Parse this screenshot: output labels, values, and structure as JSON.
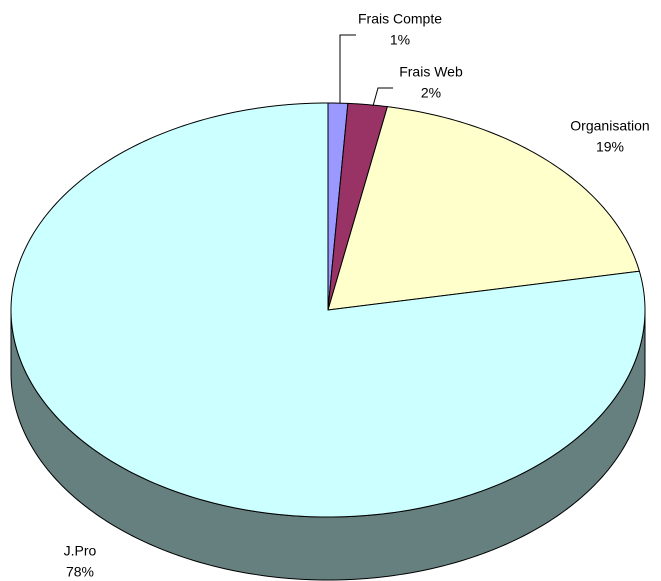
{
  "chart_data": {
    "type": "pie",
    "categories": [
      "Frais Compte",
      "Frais Web",
      "Organisation",
      "J.Pro"
    ],
    "values": [
      1,
      2,
      19,
      78
    ],
    "value_labels": [
      "1%",
      "2%",
      "19%",
      "78%"
    ],
    "colors": [
      "#9999ff",
      "#993366",
      "#ffffcc",
      "#ccffff"
    ],
    "start_angle": 0,
    "direction": "clockwise",
    "three_d": true
  }
}
